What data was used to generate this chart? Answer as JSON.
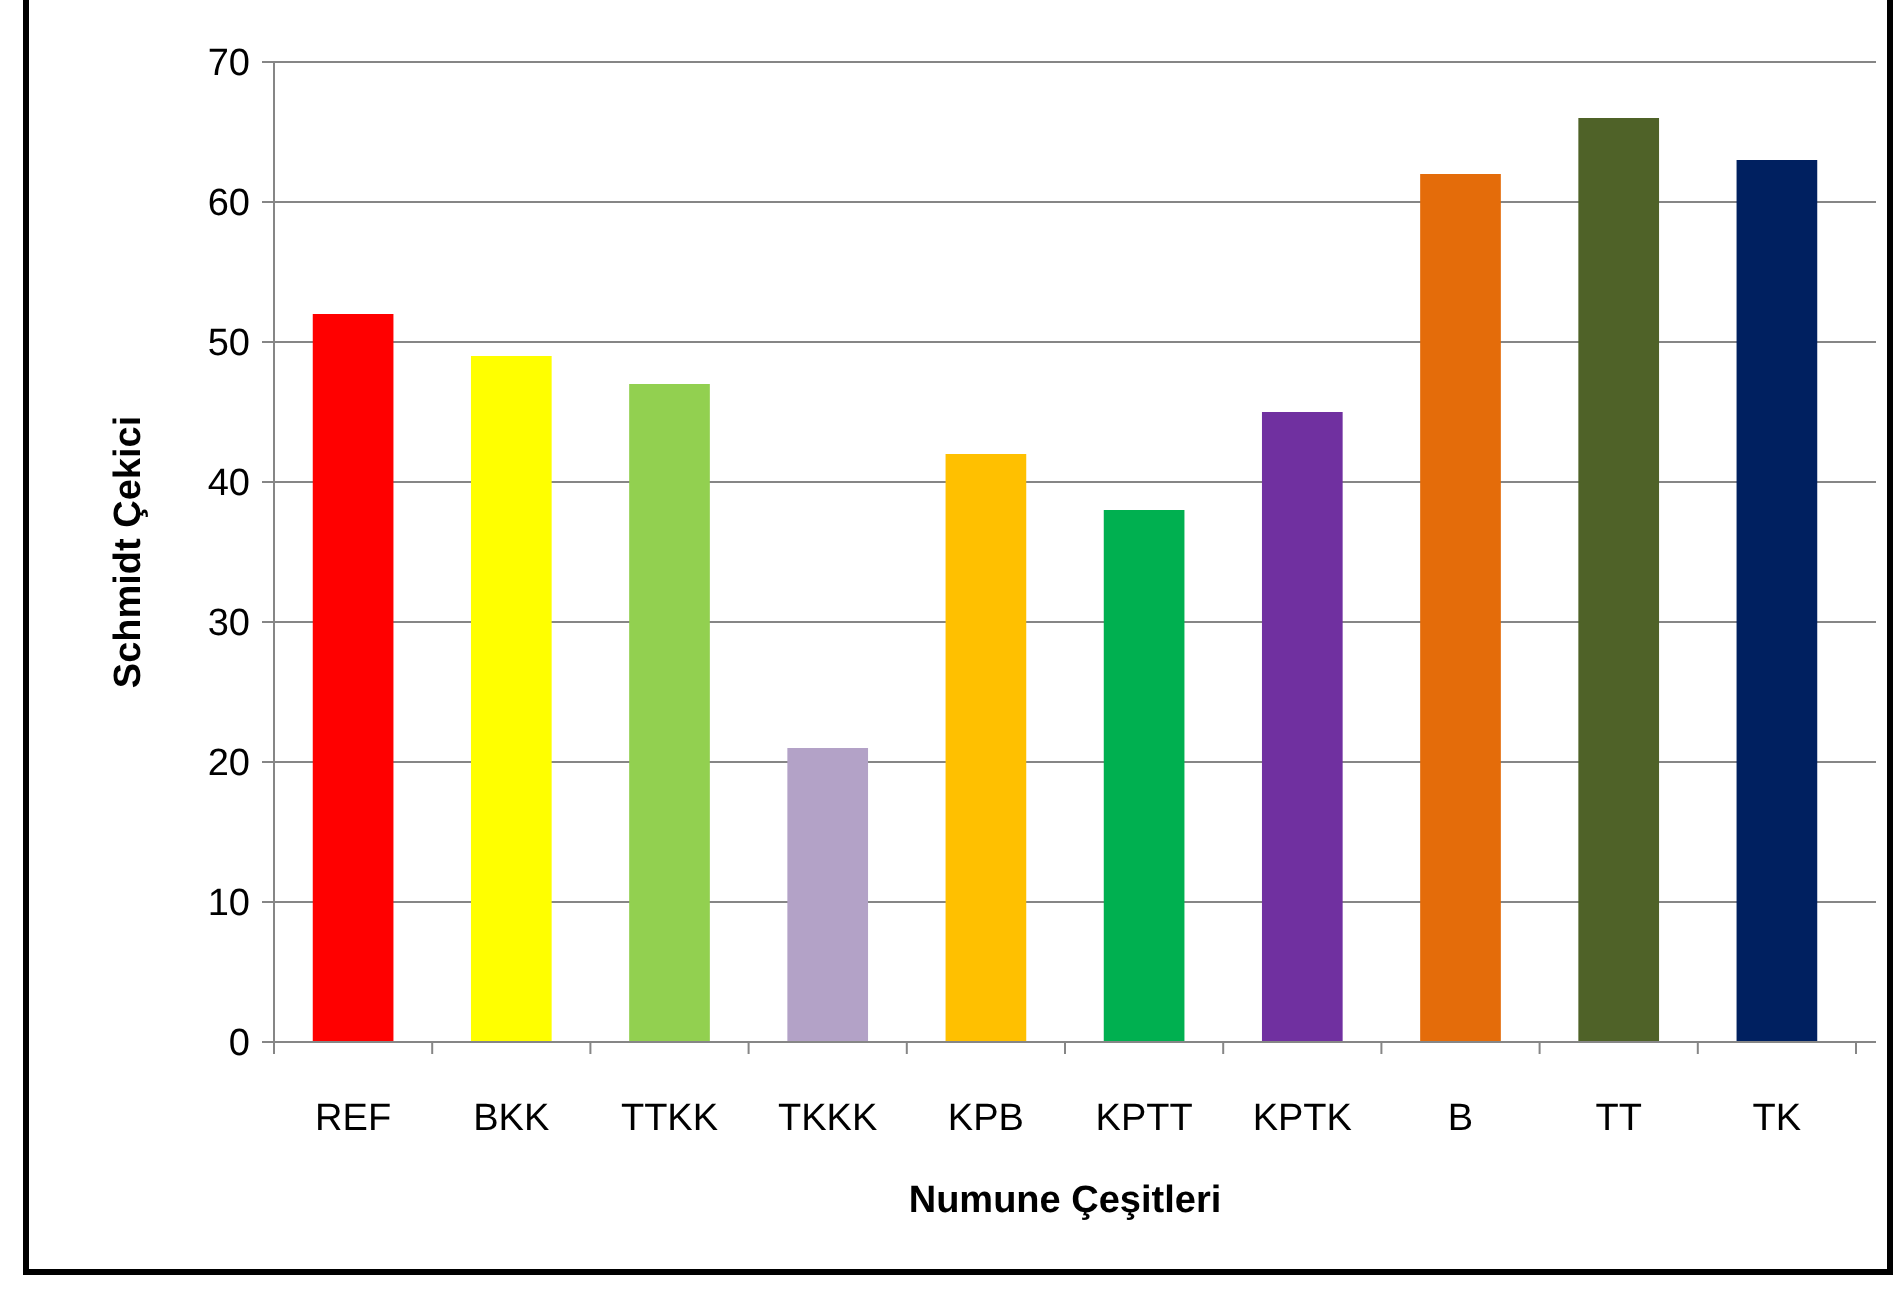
{
  "chart_data": {
    "type": "bar",
    "xlabel": "Numune Çeşitleri",
    "ylabel": "Schmidt Çekici",
    "categories": [
      "REF",
      "BKK",
      "TTKK",
      "TKKK",
      "KPB",
      "KPTT",
      "KPTK",
      "B",
      "TT",
      "TK"
    ],
    "values": [
      52,
      49,
      47,
      21,
      42,
      38,
      45,
      62,
      66,
      63
    ],
    "colors": [
      "#ff0000",
      "#ffff00",
      "#92d050",
      "#b3a2c7",
      "#ffc000",
      "#00b050",
      "#7030a0",
      "#e46c0a",
      "#4f6228",
      "#002060"
    ],
    "ylim": [
      0,
      70
    ],
    "yticks": [
      0,
      10,
      20,
      30,
      40,
      50,
      60,
      70
    ],
    "grid": "y"
  }
}
